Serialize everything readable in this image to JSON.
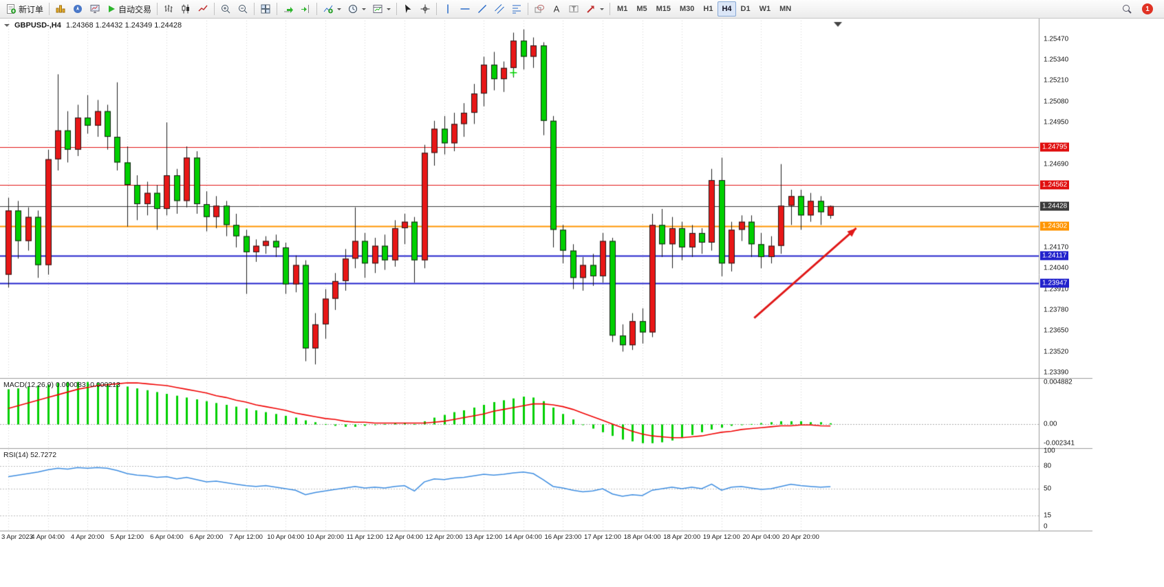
{
  "toolbar": {
    "new_order_label": "新订单",
    "autotrading_label": "自动交易",
    "timeframes": [
      "M1",
      "M5",
      "M15",
      "M30",
      "H1",
      "H4",
      "D1",
      "W1",
      "MN"
    ],
    "active_timeframe": "H4",
    "notification_count": "1"
  },
  "chart": {
    "title": "GBPUSD-,H4",
    "ohlc": "1.24368 1.24432 1.24349 1.24428",
    "macd_label": "MACD(12,26,9) 0.000083 -0.000213",
    "rsi_label": "RSI(14) 52.7272"
  },
  "colors": {
    "bull": "#e81717",
    "bear": "#00cf00",
    "wick": "#1a1a1a",
    "macd_hist": "#00cf00",
    "macd_signal": "#f00000",
    "rsi_line": "#3c8ce0",
    "grid": "#d2d2d2"
  },
  "chart_data": {
    "type": "candlestick",
    "symbol": "GBPUSD-",
    "timeframe": "H4",
    "label_every": 4,
    "time_labels": [
      "3 Apr 2023",
      "4 Apr 04:00",
      "4 Apr 20:00",
      "5 Apr 12:00",
      "6 Apr 04:00",
      "6 Apr 20:00",
      "7 Apr 12:00",
      "10 Apr 04:00",
      "10 Apr 20:00",
      "11 Apr 12:00",
      "12 Apr 04:00",
      "12 Apr 20:00",
      "13 Apr 12:00",
      "14 Apr 04:00",
      "16 Apr 23:00",
      "17 Apr 12:00",
      "18 Apr 04:00",
      "18 Apr 20:00",
      "19 Apr 12:00",
      "20 Apr 04:00",
      "20 Apr 20:00"
    ],
    "price_axis": {
      "min": 1.2339,
      "max": 1.2547,
      "step": 0.0013
    },
    "candles": [
      [
        1.24,
        1.2448,
        1.2392,
        1.244
      ],
      [
        1.244,
        1.2446,
        1.241,
        1.2421
      ],
      [
        1.2421,
        1.2442,
        1.2415,
        1.2436
      ],
      [
        1.2436,
        1.244,
        1.2398,
        1.2406
      ],
      [
        1.2406,
        1.2478,
        1.24,
        1.2472
      ],
      [
        1.2472,
        1.2525,
        1.2465,
        1.249
      ],
      [
        1.249,
        1.2502,
        1.247,
        1.2478
      ],
      [
        1.2478,
        1.2506,
        1.2474,
        1.2498
      ],
      [
        1.2498,
        1.2512,
        1.2488,
        1.2493
      ],
      [
        1.2493,
        1.2509,
        1.2486,
        1.2502
      ],
      [
        1.2502,
        1.2506,
        1.2478,
        1.2486
      ],
      [
        1.2486,
        1.252,
        1.2465,
        1.247
      ],
      [
        1.247,
        1.248,
        1.243,
        1.2456
      ],
      [
        1.2456,
        1.2462,
        1.2434,
        1.2444
      ],
      [
        1.2444,
        1.2458,
        1.2437,
        1.2451
      ],
      [
        1.2451,
        1.2456,
        1.2428,
        1.2441
      ],
      [
        1.2441,
        1.2495,
        1.2437,
        1.2462
      ],
      [
        1.2462,
        1.2466,
        1.2438,
        1.2446
      ],
      [
        1.2446,
        1.248,
        1.2442,
        1.2473
      ],
      [
        1.2473,
        1.2477,
        1.2438,
        1.2444
      ],
      [
        1.2444,
        1.2452,
        1.2427,
        1.2436
      ],
      [
        1.2436,
        1.2449,
        1.2429,
        1.2443
      ],
      [
        1.2443,
        1.2446,
        1.2424,
        1.2431
      ],
      [
        1.2431,
        1.2438,
        1.2417,
        1.2424
      ],
      [
        1.2424,
        1.2428,
        1.2388,
        1.2414
      ],
      [
        1.2414,
        1.2422,
        1.2408,
        1.2418
      ],
      [
        1.2418,
        1.2424,
        1.2413,
        1.2421
      ],
      [
        1.2421,
        1.2425,
        1.2411,
        1.2417
      ],
      [
        1.2417,
        1.242,
        1.2388,
        1.2394
      ],
      [
        1.2394,
        1.2412,
        1.2389,
        1.2406
      ],
      [
        1.2406,
        1.2409,
        1.2346,
        1.2354
      ],
      [
        1.2354,
        1.2376,
        1.2344,
        1.2369
      ],
      [
        1.2369,
        1.2391,
        1.236,
        1.2385
      ],
      [
        1.2385,
        1.2401,
        1.2378,
        1.2396
      ],
      [
        1.2396,
        1.2416,
        1.239,
        1.241
      ],
      [
        1.241,
        1.2442,
        1.2404,
        1.2421
      ],
      [
        1.2421,
        1.2426,
        1.2398,
        1.2407
      ],
      [
        1.2407,
        1.2423,
        1.2401,
        1.2418
      ],
      [
        1.2418,
        1.2425,
        1.2403,
        1.2409
      ],
      [
        1.2409,
        1.2434,
        1.2405,
        1.2429
      ],
      [
        1.2429,
        1.2438,
        1.2419,
        1.2433
      ],
      [
        1.2433,
        1.2436,
        1.2395,
        1.2409
      ],
      [
        1.2409,
        1.2481,
        1.2404,
        1.2476
      ],
      [
        1.2476,
        1.2496,
        1.2468,
        1.2491
      ],
      [
        1.2491,
        1.2499,
        1.2475,
        1.2482
      ],
      [
        1.2482,
        1.2501,
        1.2477,
        1.2494
      ],
      [
        1.2494,
        1.2507,
        1.2486,
        1.2501
      ],
      [
        1.2501,
        1.2519,
        1.2494,
        1.2513
      ],
      [
        1.2513,
        1.2536,
        1.2505,
        1.2531
      ],
      [
        1.2531,
        1.2539,
        1.2515,
        1.2522
      ],
      [
        1.2522,
        1.2533,
        1.2514,
        1.2529
      ],
      [
        1.2529,
        1.2551,
        1.2523,
        1.2546
      ],
      [
        1.2546,
        1.2553,
        1.2528,
        1.2536
      ],
      [
        1.2536,
        1.2548,
        1.2529,
        1.2543
      ],
      [
        1.2543,
        1.2545,
        1.2487,
        1.2496
      ],
      [
        1.2496,
        1.2499,
        1.2417,
        1.2428
      ],
      [
        1.2428,
        1.2431,
        1.2407,
        1.2415
      ],
      [
        1.2415,
        1.2419,
        1.2391,
        1.2398
      ],
      [
        1.2398,
        1.2411,
        1.239,
        1.2406
      ],
      [
        1.2406,
        1.2413,
        1.2393,
        1.2399
      ],
      [
        1.2399,
        1.2426,
        1.2395,
        1.2421
      ],
      [
        1.2421,
        1.2423,
        1.2358,
        1.2362
      ],
      [
        1.2362,
        1.2369,
        1.2352,
        1.2356
      ],
      [
        1.2356,
        1.2376,
        1.2353,
        1.2371
      ],
      [
        1.2371,
        1.2379,
        1.2357,
        1.2364
      ],
      [
        1.2364,
        1.2438,
        1.2361,
        1.2431
      ],
      [
        1.2431,
        1.2441,
        1.2411,
        1.2419
      ],
      [
        1.2419,
        1.2436,
        1.2404,
        1.2429
      ],
      [
        1.2429,
        1.2433,
        1.2409,
        1.2417
      ],
      [
        1.2417,
        1.2431,
        1.2411,
        1.2426
      ],
      [
        1.2426,
        1.2429,
        1.2413,
        1.242
      ],
      [
        1.242,
        1.2466,
        1.2415,
        1.2459
      ],
      [
        1.2459,
        1.2473,
        1.2399,
        1.2407
      ],
      [
        1.2407,
        1.2433,
        1.2402,
        1.2428
      ],
      [
        1.2428,
        1.2437,
        1.2421,
        1.2433
      ],
      [
        1.2433,
        1.2437,
        1.2411,
        1.2419
      ],
      [
        1.2419,
        1.2426,
        1.2404,
        1.2411
      ],
      [
        1.2411,
        1.2424,
        1.2407,
        1.2418
      ],
      [
        1.2418,
        1.2469,
        1.2413,
        1.2443
      ],
      [
        1.2443,
        1.2453,
        1.2431,
        1.2449
      ],
      [
        1.2449,
        1.2453,
        1.2428,
        1.2437
      ],
      [
        1.2437,
        1.2451,
        1.2433,
        1.2446
      ],
      [
        1.2446,
        1.2449,
        1.2431,
        1.2439
      ],
      [
        1.24368,
        1.24432,
        1.24349,
        1.24428
      ]
    ],
    "levels": [
      {
        "price": 1.24795,
        "label": "1.24795",
        "color": "#e01010",
        "width": 1
      },
      {
        "price": 1.24562,
        "label": "1.24562",
        "color": "#e01010",
        "width": 1
      },
      {
        "price": 1.24428,
        "label": "1.24428",
        "color": "#3a3a3a",
        "width": 1
      },
      {
        "price": 1.24302,
        "label": "1.24302",
        "color": "#ff9500",
        "width": 2
      },
      {
        "price": 1.24117,
        "label": "1.24117",
        "color": "#2222cc",
        "width": 2
      },
      {
        "price": 1.23947,
        "label": "1.23947",
        "color": "#2222cc",
        "width": 2
      }
    ],
    "macd": {
      "max": 0.004882,
      "min": -0.002341,
      "axis_labels": [
        "0.004882",
        "0.00",
        "-0.002341"
      ],
      "histogram": [
        0.0038,
        0.0039,
        0.0041,
        0.0042,
        0.0043,
        0.0045,
        0.0046,
        0.0046,
        0.0046,
        0.0045,
        0.0044,
        0.0043,
        0.0041,
        0.0039,
        0.0037,
        0.0035,
        0.0033,
        0.0031,
        0.0029,
        0.0027,
        0.0025,
        0.0023,
        0.0021,
        0.0019,
        0.0017,
        0.0015,
        0.0013,
        0.0011,
        0.0009,
        0.0007,
        0.0004,
        0.0002,
        0.0,
        -0.0002,
        -0.0003,
        -0.0003,
        -0.0002,
        -0.0001,
        0.0,
        0.0001,
        0.0001,
        0.0,
        0.0003,
        0.0007,
        0.001,
        0.0013,
        0.0015,
        0.0018,
        0.0021,
        0.0024,
        0.0026,
        0.0028,
        0.003,
        0.0029,
        0.0025,
        0.0018,
        0.0011,
        0.0005,
        -0.0001,
        -0.0005,
        -0.0009,
        -0.0013,
        -0.0017,
        -0.0019,
        -0.0021,
        -0.0021,
        -0.002,
        -0.0018,
        -0.0015,
        -0.0012,
        -0.0009,
        -0.0006,
        -0.0004,
        -0.0002,
        -0.0001,
        0.0,
        0.0001,
        0.0002,
        0.0003,
        0.0003,
        0.0003,
        0.0002,
        0.0002,
        8.3e-05
      ],
      "signal": [
        0.0017,
        0.002,
        0.0023,
        0.0026,
        0.0029,
        0.0032,
        0.0035,
        0.0038,
        0.004,
        0.0042,
        0.0043,
        0.0044,
        0.0045,
        0.0045,
        0.0044,
        0.0043,
        0.0042,
        0.004,
        0.0038,
        0.0036,
        0.0034,
        0.0031,
        0.0029,
        0.0026,
        0.0024,
        0.0021,
        0.0019,
        0.0017,
        0.0015,
        0.0012,
        0.001,
        0.0008,
        0.0006,
        0.0005,
        0.0003,
        0.0002,
        0.0002,
        0.0001,
        0.0001,
        0.0001,
        0.0001,
        0.0001,
        0.0001,
        0.0002,
        0.0003,
        0.0005,
        0.0007,
        0.0009,
        0.0011,
        0.0014,
        0.0016,
        0.0018,
        0.002,
        0.0022,
        0.0022,
        0.0021,
        0.0019,
        0.0016,
        0.0012,
        0.0008,
        0.0004,
        0.0,
        -0.0004,
        -0.0008,
        -0.0011,
        -0.0013,
        -0.0014,
        -0.0015,
        -0.0015,
        -0.0014,
        -0.0013,
        -0.0011,
        -0.0009,
        -0.0008,
        -0.0006,
        -0.0005,
        -0.0004,
        -0.0003,
        -0.0002,
        -0.0002,
        -0.0001,
        -0.0001,
        -0.0002,
        -0.000213
      ]
    },
    "rsi": {
      "levels": [
        80,
        50,
        15
      ],
      "axis_values": [
        100,
        80,
        50,
        15,
        0
      ],
      "axis_labels": [
        "100",
        "80",
        "50",
        "15",
        "0"
      ],
      "values": [
        66,
        68,
        70,
        72,
        75,
        77,
        76,
        78,
        77,
        78,
        77,
        74,
        70,
        68,
        67,
        65,
        66,
        63,
        65,
        62,
        59,
        60,
        58,
        56,
        54,
        53,
        54,
        52,
        50,
        48,
        42,
        45,
        47,
        49,
        51,
        53,
        51,
        52,
        51,
        53,
        54,
        47,
        59,
        63,
        62,
        64,
        65,
        67,
        69,
        68,
        69,
        71,
        72,
        70,
        62,
        53,
        51,
        48,
        46,
        47,
        50,
        43,
        40,
        42,
        41,
        48,
        50,
        52,
        50,
        52,
        50,
        56,
        48,
        52,
        53,
        51,
        49,
        50,
        53,
        56,
        54,
        53,
        52,
        52.7272
      ]
    },
    "arrow": {
      "bar1": 75.3,
      "price1": 1.2373,
      "bar2": 85.6,
      "price2": 1.2429,
      "color": "#e01818"
    },
    "marker": {
      "bar": 51,
      "price": 1.2526,
      "color": "#00cf00"
    }
  }
}
